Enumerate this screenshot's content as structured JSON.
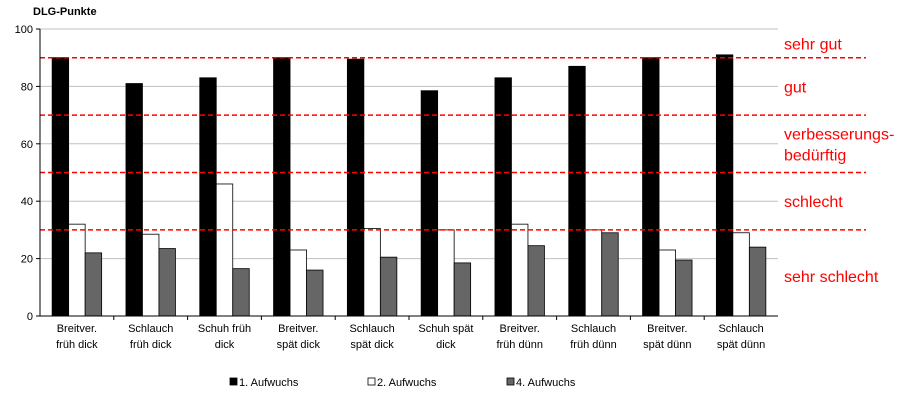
{
  "chart_data": {
    "type": "bar",
    "ylabel": "DLG-Punkte",
    "ylim": [
      0,
      100
    ],
    "yticks": [
      0,
      20,
      40,
      60,
      80,
      100
    ],
    "grid": "horizontal",
    "categories": [
      [
        "Breitver.",
        "früh   dick"
      ],
      [
        "Schlauch",
        "früh   dick"
      ],
      [
        "Schuh    früh",
        "dick"
      ],
      [
        "Breitver.",
        "spät   dick"
      ],
      [
        "Schlauch",
        "spät  dick"
      ],
      [
        "Schuh    spät",
        "dick"
      ],
      [
        "Breitver.",
        "früh  dünn"
      ],
      [
        "Schlauch",
        "früh   dünn"
      ],
      [
        "Breitver.",
        "spät   dünn"
      ],
      [
        "Schlauch",
        "spät  dünn"
      ]
    ],
    "series": [
      {
        "name": "1. Aufwuchs",
        "color": "#000000",
        "values": [
          90,
          81,
          83,
          90,
          89.5,
          78.5,
          83,
          87,
          90,
          91
        ]
      },
      {
        "name": "2. Aufwuchs",
        "color": "#ffffff",
        "values": [
          32,
          28.5,
          46,
          23,
          30.5,
          30,
          32,
          30,
          23,
          29
        ]
      },
      {
        "name": "4. Aufwuchs",
        "color": "#666666",
        "values": [
          22,
          23.5,
          16.5,
          16,
          20.5,
          18.5,
          24.5,
          29,
          19.5,
          24
        ]
      }
    ],
    "thresholds": [
      {
        "value": 90,
        "color": "#ff0000"
      },
      {
        "value": 70,
        "color": "#ff0000"
      },
      {
        "value": 50,
        "color": "#ff0000"
      },
      {
        "value": 30,
        "color": "#ff0000"
      }
    ],
    "bands": [
      {
        "label": [
          "sehr gut"
        ],
        "mid": 95
      },
      {
        "label": [
          "gut"
        ],
        "mid": 80
      },
      {
        "label": [
          "verbesserungs-",
          "bedürftig"
        ],
        "mid": 60
      },
      {
        "label": [
          "schlecht"
        ],
        "mid": 40
      },
      {
        "label": [
          "sehr schlecht"
        ],
        "mid": 14
      }
    ],
    "legend_position": "bottom"
  }
}
